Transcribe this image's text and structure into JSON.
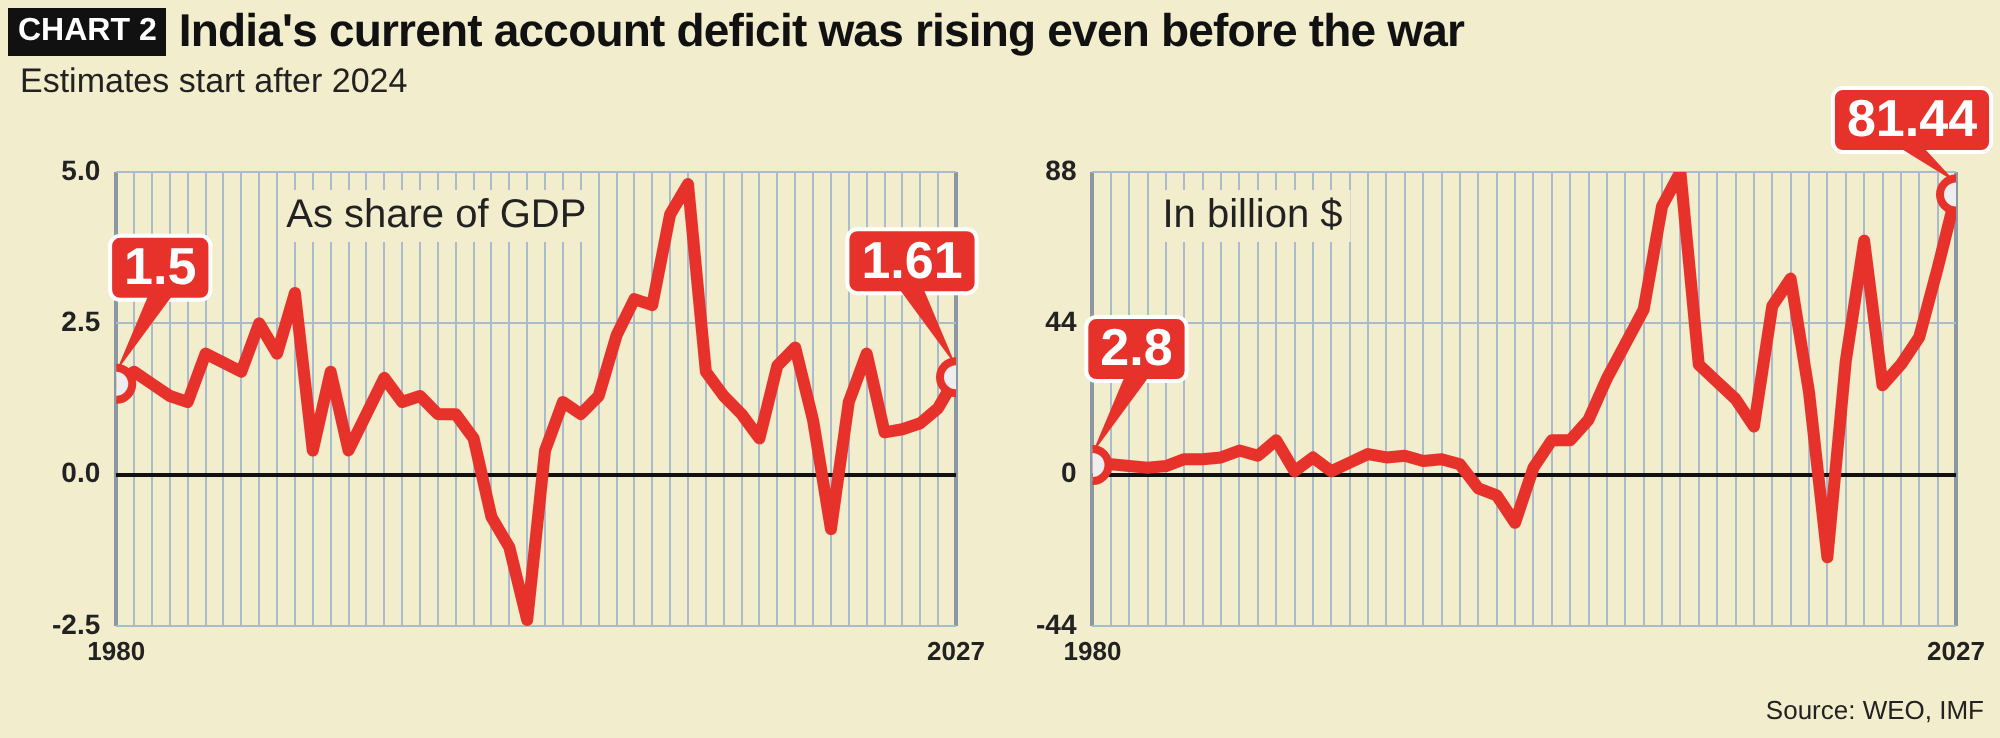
{
  "chart_data": [
    {
      "type": "line",
      "title": "India's current account deficit was rising even before the war",
      "subtitle": "Estimates start after 2024",
      "annotations": [
        "CHART 2",
        "As share of GDP"
      ],
      "x": [
        1980,
        1981,
        1982,
        1983,
        1984,
        1985,
        1986,
        1987,
        1988,
        1989,
        1990,
        1991,
        1992,
        1993,
        1994,
        1995,
        1996,
        1997,
        1998,
        1999,
        2000,
        2001,
        2002,
        2003,
        2004,
        2005,
        2006,
        2007,
        2008,
        2009,
        2010,
        2011,
        2012,
        2013,
        2014,
        2015,
        2016,
        2017,
        2018,
        2019,
        2020,
        2021,
        2022,
        2023,
        2024,
        2025,
        2026,
        2027
      ],
      "values": [
        1.5,
        1.7,
        1.5,
        1.3,
        1.2,
        2.0,
        1.85,
        1.7,
        2.5,
        2.0,
        3.0,
        0.4,
        1.7,
        0.4,
        1.0,
        1.6,
        1.2,
        1.3,
        1.0,
        1.0,
        0.6,
        -0.7,
        -1.2,
        -2.4,
        0.4,
        1.2,
        1.0,
        1.3,
        2.3,
        2.9,
        2.8,
        4.3,
        4.8,
        1.7,
        1.3,
        1.0,
        0.6,
        1.8,
        2.1,
        0.9,
        -0.9,
        1.2,
        2.0,
        0.7,
        0.75,
        0.85,
        1.1,
        1.61
      ],
      "value_labels": [
        "1.5",
        null,
        null,
        null,
        null,
        null,
        null,
        null,
        null,
        null,
        null,
        null,
        null,
        null,
        null,
        null,
        null,
        null,
        null,
        null,
        null,
        null,
        null,
        null,
        null,
        null,
        null,
        null,
        null,
        null,
        null,
        null,
        null,
        null,
        null,
        null,
        null,
        null,
        null,
        null,
        null,
        null,
        null,
        null,
        null,
        null,
        null,
        "1.61"
      ],
      "color": "#e6322a",
      "grid": true,
      "xlim": [
        1980,
        2027
      ],
      "xticks": [
        {
          "value": 1980,
          "label": "1980"
        },
        {
          "value": 1981,
          "label": null
        },
        {
          "value": 1982,
          "label": null
        },
        {
          "value": 1983,
          "label": null
        },
        {
          "value": 1984,
          "label": null
        },
        {
          "value": 1985,
          "label": null
        },
        {
          "value": 1986,
          "label": null
        },
        {
          "value": 1987,
          "label": null
        },
        {
          "value": 1988,
          "label": null
        },
        {
          "value": 1989,
          "label": null
        },
        {
          "value": 1990,
          "label": null
        },
        {
          "value": 1991,
          "label": null
        },
        {
          "value": 1992,
          "label": null
        },
        {
          "value": 1993,
          "label": null
        },
        {
          "value": 1994,
          "label": null
        },
        {
          "value": 1995,
          "label": null
        },
        {
          "value": 1996,
          "label": null
        },
        {
          "value": 1997,
          "label": null
        },
        {
          "value": 1998,
          "label": null
        },
        {
          "value": 1999,
          "label": null
        },
        {
          "value": 2000,
          "label": null
        },
        {
          "value": 2001,
          "label": null
        },
        {
          "value": 2002,
          "label": null
        },
        {
          "value": 2003,
          "label": null
        },
        {
          "value": 2004,
          "label": null
        },
        {
          "value": 2005,
          "label": null
        },
        {
          "value": 2006,
          "label": null
        },
        {
          "value": 2007,
          "label": null
        },
        {
          "value": 2008,
          "label": null
        },
        {
          "value": 2009,
          "label": null
        },
        {
          "value": 2010,
          "label": null
        },
        {
          "value": 2011,
          "label": null
        },
        {
          "value": 2012,
          "label": null
        },
        {
          "value": 2013,
          "label": null
        },
        {
          "value": 2014,
          "label": null
        },
        {
          "value": 2015,
          "label": null
        },
        {
          "value": 2016,
          "label": null
        },
        {
          "value": 2017,
          "label": null
        },
        {
          "value": 2018,
          "label": null
        },
        {
          "value": 2019,
          "label": null
        },
        {
          "value": 2020,
          "label": null
        },
        {
          "value": 2021,
          "label": null
        },
        {
          "value": 2022,
          "label": null
        },
        {
          "value": 2023,
          "label": null
        },
        {
          "value": 2024,
          "label": null
        },
        {
          "value": 2025,
          "label": null
        },
        {
          "value": 2026,
          "label": null
        },
        {
          "value": 2027,
          "label": "2027"
        }
      ],
      "ylim": [
        -2.5,
        5.0
      ],
      "yticks": [
        {
          "value": -2.5,
          "label": "-2.5"
        },
        {
          "value": 0,
          "label": "0.0"
        },
        {
          "value": 2.5,
          "label": "2.5"
        },
        {
          "value": 5,
          "label": "5.0"
        }
      ]
    },
    {
      "type": "line",
      "annotations": [
        "In billion $",
        "Source: WEO, IMF"
      ],
      "x": [
        1980,
        1981,
        1982,
        1983,
        1984,
        1985,
        1986,
        1987,
        1988,
        1989,
        1990,
        1991,
        1992,
        1993,
        1994,
        1995,
        1996,
        1997,
        1998,
        1999,
        2000,
        2001,
        2002,
        2003,
        2004,
        2005,
        2006,
        2007,
        2008,
        2009,
        2010,
        2011,
        2012,
        2013,
        2014,
        2015,
        2016,
        2017,
        2018,
        2019,
        2020,
        2021,
        2022,
        2023,
        2024,
        2025,
        2026,
        2027
      ],
      "values": [
        2.8,
        3,
        2.5,
        2,
        2.5,
        4.5,
        4.5,
        5,
        7,
        5.5,
        10,
        1,
        5,
        1,
        3.5,
        6,
        5,
        5.5,
        4,
        4.5,
        3,
        -4,
        -6,
        -14,
        2,
        10,
        10,
        16,
        28,
        38,
        48,
        78,
        88,
        32,
        27,
        22,
        14,
        49,
        57,
        24,
        -24,
        33,
        68,
        26,
        32,
        40,
        60,
        81.44
      ],
      "value_labels": [
        "2.8",
        null,
        null,
        null,
        null,
        null,
        null,
        null,
        null,
        null,
        null,
        null,
        null,
        null,
        null,
        null,
        null,
        null,
        null,
        null,
        null,
        null,
        null,
        null,
        null,
        null,
        null,
        null,
        null,
        null,
        null,
        null,
        null,
        null,
        null,
        null,
        null,
        null,
        null,
        null,
        null,
        null,
        null,
        null,
        null,
        null,
        null,
        "81.44"
      ],
      "color": "#e6322a",
      "grid": true,
      "xlim": [
        1980,
        2027
      ],
      "xticks": [
        {
          "value": 1980,
          "label": "1980"
        },
        {
          "value": 1981,
          "label": null
        },
        {
          "value": 1982,
          "label": null
        },
        {
          "value": 1983,
          "label": null
        },
        {
          "value": 1984,
          "label": null
        },
        {
          "value": 1985,
          "label": null
        },
        {
          "value": 1986,
          "label": null
        },
        {
          "value": 1987,
          "label": null
        },
        {
          "value": 1988,
          "label": null
        },
        {
          "value": 1989,
          "label": null
        },
        {
          "value": 1990,
          "label": null
        },
        {
          "value": 1991,
          "label": null
        },
        {
          "value": 1992,
          "label": null
        },
        {
          "value": 1993,
          "label": null
        },
        {
          "value": 1994,
          "label": null
        },
        {
          "value": 1995,
          "label": null
        },
        {
          "value": 1996,
          "label": null
        },
        {
          "value": 1997,
          "label": null
        },
        {
          "value": 1998,
          "label": null
        },
        {
          "value": 1999,
          "label": null
        },
        {
          "value": 2000,
          "label": null
        },
        {
          "value": 2001,
          "label": null
        },
        {
          "value": 2002,
          "label": null
        },
        {
          "value": 2003,
          "label": null
        },
        {
          "value": 2004,
          "label": null
        },
        {
          "value": 2005,
          "label": null
        },
        {
          "value": 2006,
          "label": null
        },
        {
          "value": 2007,
          "label": null
        },
        {
          "value": 2008,
          "label": null
        },
        {
          "value": 2009,
          "label": null
        },
        {
          "value": 2010,
          "label": null
        },
        {
          "value": 2011,
          "label": null
        },
        {
          "value": 2012,
          "label": null
        },
        {
          "value": 2013,
          "label": null
        },
        {
          "value": 2014,
          "label": null
        },
        {
          "value": 2015,
          "label": null
        },
        {
          "value": 2016,
          "label": null
        },
        {
          "value": 2017,
          "label": null
        },
        {
          "value": 2018,
          "label": null
        },
        {
          "value": 2019,
          "label": null
        },
        {
          "value": 2020,
          "label": null
        },
        {
          "value": 2021,
          "label": null
        },
        {
          "value": 2022,
          "label": null
        },
        {
          "value": 2023,
          "label": null
        },
        {
          "value": 2024,
          "label": null
        },
        {
          "value": 2025,
          "label": null
        },
        {
          "value": 2026,
          "label": null
        },
        {
          "value": 2027,
          "label": "2027"
        }
      ],
      "ylim": [
        -44,
        88
      ],
      "yticks": [
        -44,
        0,
        44,
        88
      ]
    }
  ]
}
